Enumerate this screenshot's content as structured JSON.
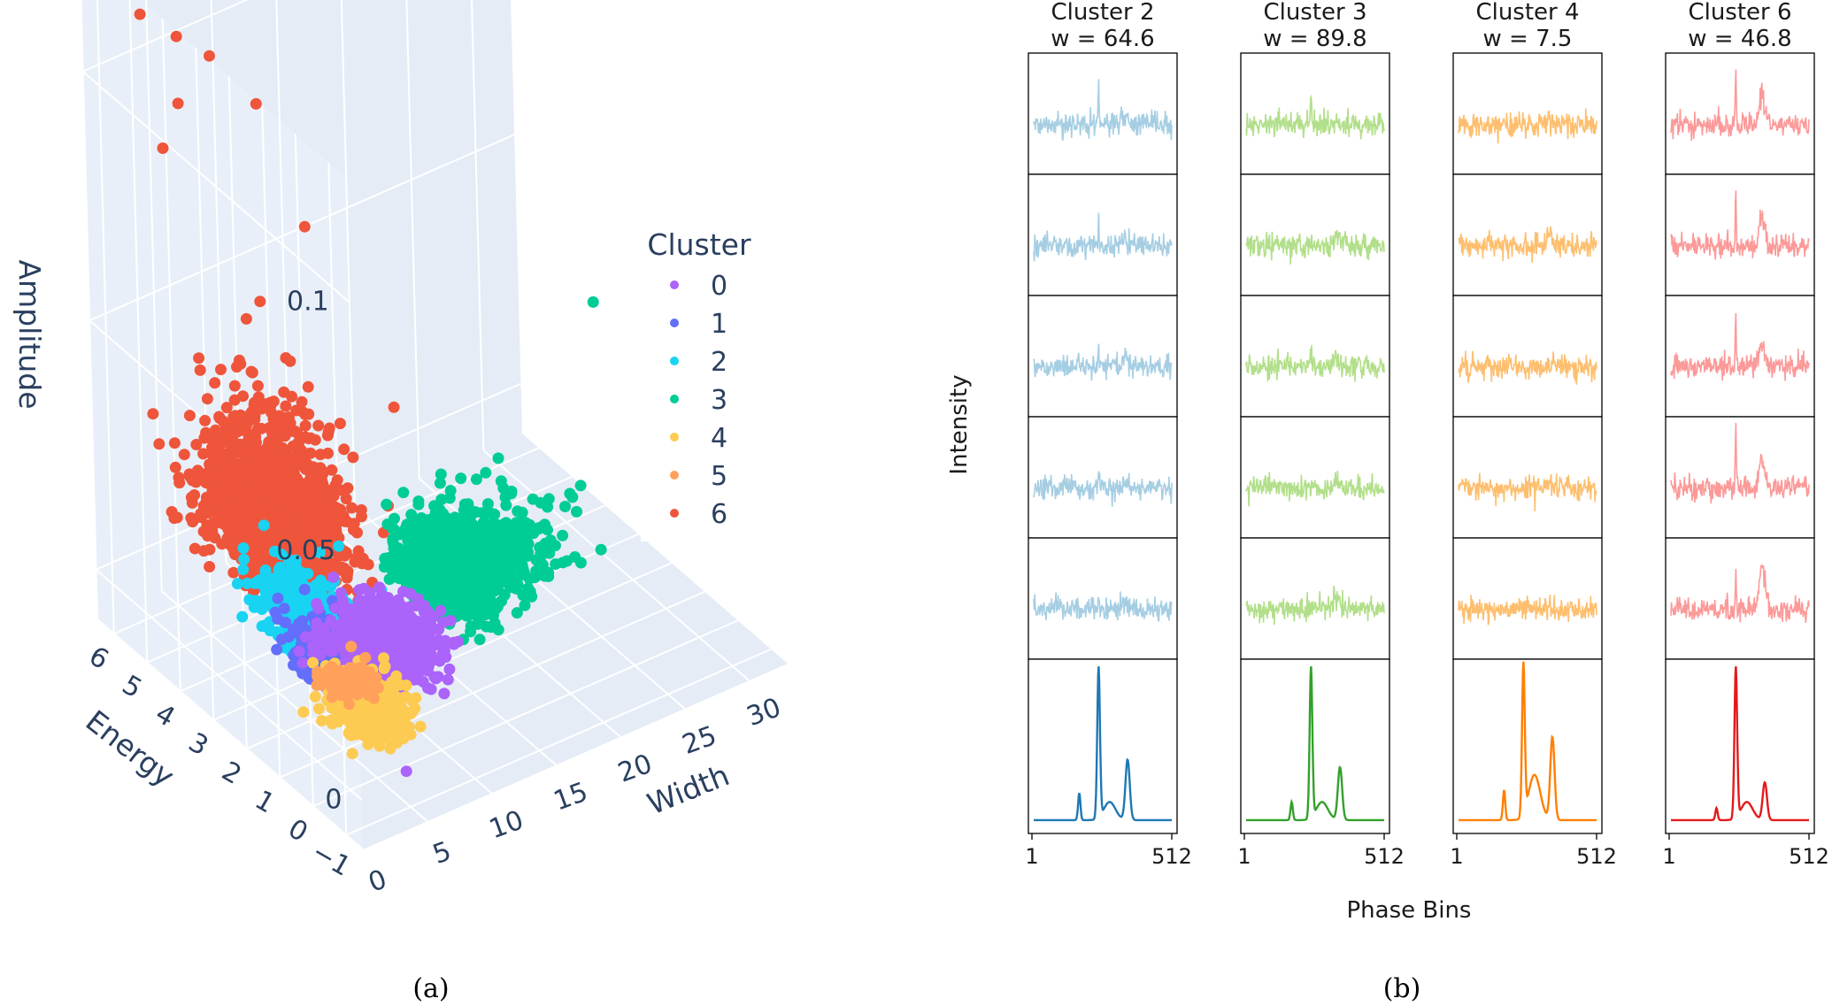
{
  "chart_data": [
    {
      "type": "scatter3d",
      "axes": {
        "x": {
          "label": "Width",
          "ticks": [
            "0",
            "5",
            "10",
            "15",
            "20",
            "25",
            "30"
          ],
          "range": [
            0,
            33
          ]
        },
        "y": {
          "label": "Energy",
          "ticks": [
            "−1",
            "0",
            "1",
            "2",
            "3",
            "4",
            "5",
            "6"
          ],
          "range": [
            -1.5,
            6.5
          ]
        },
        "z": {
          "label": "Amplitude",
          "ticks": [
            "0",
            "0.05",
            "0.1"
          ],
          "range": [
            -0.01,
            0.125
          ]
        }
      },
      "legend": {
        "title": "Cluster",
        "placement": "top-right",
        "items": [
          {
            "label": "0",
            "color": "#ab63fa"
          },
          {
            "label": "1",
            "color": "#636efa"
          },
          {
            "label": "2",
            "color": "#19d3f3"
          },
          {
            "label": "3",
            "color": "#00cc96"
          },
          {
            "label": "4",
            "color": "#fecb52"
          },
          {
            "label": "5",
            "color": "#ffa15a"
          },
          {
            "label": "6",
            "color": "#ef553b"
          }
        ]
      },
      "series": [
        {
          "name": "6",
          "color": "#ef553b",
          "center": [
            5,
            3,
            0.03
          ],
          "spread": [
            3,
            1.5,
            0.012
          ],
          "outliers": [
            [
              2,
              5.5,
              0.115
            ],
            [
              4,
              5.2,
              0.11
            ],
            [
              3,
              4.8,
              0.1
            ],
            [
              1,
              4.5,
              0.095
            ],
            [
              7,
              4,
              0.1
            ],
            [
              6,
              5,
              0.105
            ],
            [
              8,
              3,
              0.08
            ],
            [
              12,
              2,
              0.045
            ],
            [
              3,
              1,
              0.01
            ]
          ]
        },
        {
          "name": "3",
          "color": "#00cc96",
          "center": [
            15,
            1.8,
            0.012
          ],
          "spread": [
            5,
            1.0,
            0.006
          ],
          "outliers": [
            [
              30,
              3,
              0.04
            ]
          ]
        },
        {
          "name": "2",
          "color": "#19d3f3",
          "center": [
            4,
            1.5,
            0.012
          ],
          "spread": [
            2,
            1.2,
            0.005
          ]
        },
        {
          "name": "1",
          "color": "#636efa",
          "center": [
            3.5,
            0.6,
            0.01
          ],
          "spread": [
            2,
            1.0,
            0.004
          ]
        },
        {
          "name": "0",
          "color": "#ab63fa",
          "center": [
            7,
            0.5,
            0.01
          ],
          "spread": [
            3,
            1.0,
            0.004
          ],
          "outliers": [
            [
              4,
              -1.3,
              0.0
            ]
          ]
        },
        {
          "name": "4",
          "color": "#fecb52",
          "center": [
            3.5,
            -0.3,
            0.006
          ],
          "spread": [
            2,
            0.8,
            0.003
          ]
        },
        {
          "name": "5",
          "color": "#ffa15a",
          "center": [
            3.5,
            0.2,
            0.008
          ],
          "spread": [
            1.5,
            0.5,
            0.003
          ]
        }
      ]
    },
    {
      "type": "line",
      "layout": "small-multiples grid, 4 columns x 6 rows",
      "ylabel": "Intensity",
      "xlabel": "Phase Bins",
      "x_ticks": [
        "1",
        "512"
      ],
      "x_range": [
        1,
        512
      ],
      "columns": [
        {
          "title": "Cluster 2",
          "subtitle": "w = 64.6",
          "noise_color": "#a6cee3",
          "mean_color": "#1f78b4",
          "spike": [
            3.2,
            2.2,
            1.6,
            1.4,
            1.1
          ],
          "bump": [
            0.15,
            0.3,
            0.3,
            0.25,
            0.2
          ],
          "mean_peaks": [
            0.18,
            1.0,
            0.4
          ]
        },
        {
          "title": "Cluster 3",
          "subtitle": "w = 89.8",
          "noise_color": "#b2df8a",
          "mean_color": "#33a02c",
          "spike": [
            2.8,
            0.5,
            1.2,
            0.6,
            0.4
          ],
          "bump": [
            0.1,
            0.25,
            0.2,
            0.2,
            0.3
          ],
          "mean_peaks": [
            0.12,
            1.0,
            0.35
          ]
        },
        {
          "title": "Cluster 4",
          "subtitle": "w = 7.5",
          "noise_color": "#fdbf6f",
          "mean_color": "#ff7f00",
          "spike": [
            0.1,
            0.1,
            0.1,
            0.1,
            0.1
          ],
          "bump": [
            0.1,
            0.3,
            0.15,
            0.15,
            0.1
          ],
          "mean_peaks": [
            0.2,
            1.0,
            0.55
          ]
        },
        {
          "title": "Cluster 6",
          "subtitle": "w = 46.8",
          "noise_color": "#fb9a99",
          "mean_color": "#e31a1c",
          "spike": [
            5.0,
            5.0,
            5.0,
            5.0,
            3.2
          ],
          "bump": [
            0.8,
            0.9,
            0.6,
            0.9,
            1.4
          ],
          "mean_peaks": [
            0.08,
            1.0,
            0.25
          ]
        }
      ]
    }
  ],
  "captions": {
    "a": "(a)",
    "b": "(b)"
  }
}
